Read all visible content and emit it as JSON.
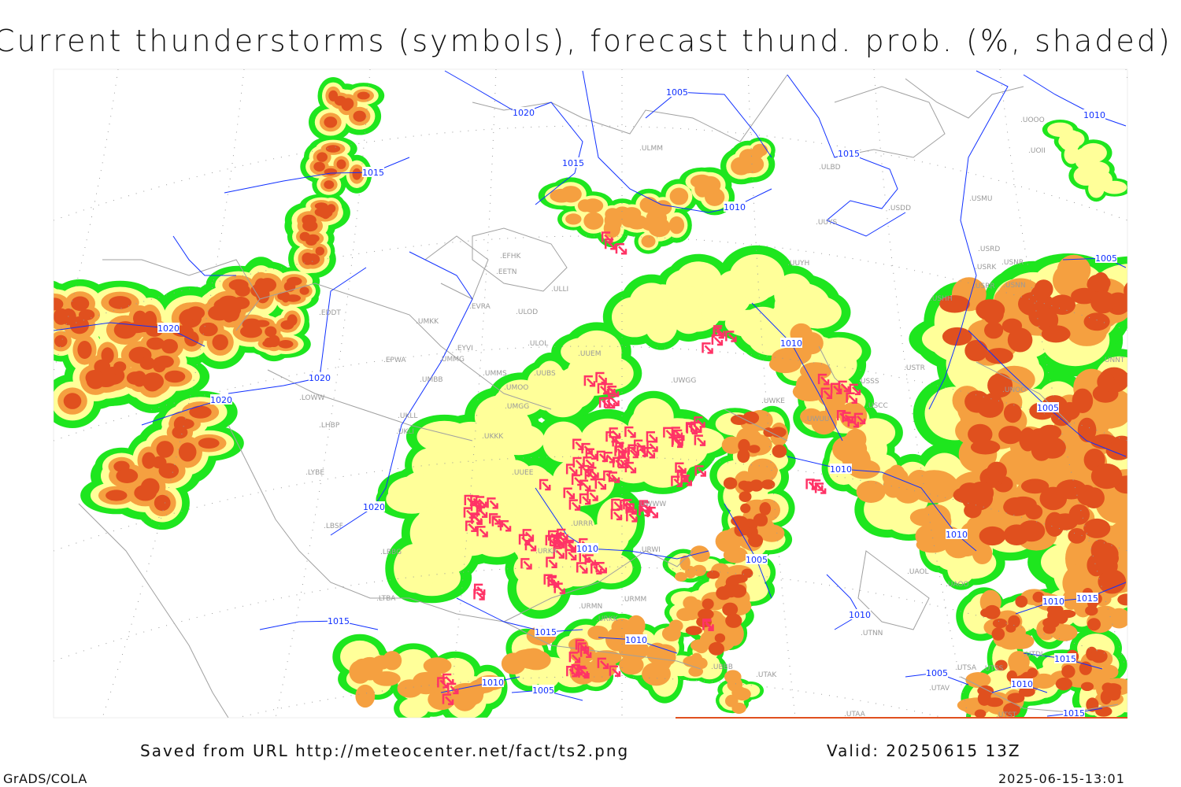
{
  "title": "Current thunderstorms (symbols), forecast thund. prob. (%, shaded)",
  "footer": {
    "saved": "Saved from URL http://meteocenter.net/fact/ts2.png",
    "valid": "Valid: 20250615 13Z",
    "software": "GrADS/COLA",
    "timestamp": "2025-06-15-13:01"
  },
  "colors": {
    "prob_low": "#1ee61e",
    "prob_mid": "#ffff99",
    "prob_high": "#f5a040",
    "prob_max": "#e0501e",
    "thunderstorm_symbol": "#ff3366",
    "isobar": "#1030ff",
    "coastline": "#a0a0a0"
  },
  "map": {
    "legend_symbol": "thunderstorm-symbol",
    "isobar_labels": [
      "1020",
      "1005",
      "1015",
      "1015",
      "1010",
      "1015",
      "1010",
      "1005",
      "1020",
      "1020",
      "1020",
      "1010",
      "1005",
      "1020",
      "1010",
      "1010",
      "1005",
      "1010",
      "1010",
      "1015",
      "1015",
      "1010",
      "1010",
      "1015",
      "1015",
      "1010",
      "1005",
      "1005",
      "1010",
      "1015"
    ],
    "stations": [
      "EFHK",
      "EETN",
      "ULLI",
      "EVRA",
      "ULOD",
      "UMKK",
      "EDDT",
      "EYVI",
      "EPWA",
      "UMMG",
      "ULOL",
      "UMMS",
      "UMOO",
      "UUBS",
      "UMBB",
      "LOWW",
      "UKLL",
      "LHBP",
      "UKLI",
      "UMGG",
      "UKKK",
      "LYBE",
      "LBSF",
      "LBBG",
      "LTBA",
      "UUEM",
      "UWGG",
      "UWKE",
      "UWUU",
      "UUYH",
      "UUYS",
      "ULBD",
      "USDD",
      "USMU",
      "USRD",
      "USRK",
      "USNR",
      "USRR",
      "USNN",
      "USHH",
      "USTR",
      "USSS",
      "USCC",
      "UOOO",
      "UOII",
      "UNOO",
      "UNNT",
      "UTAK",
      "UBBB",
      "UTSA",
      "UTSS",
      "UTAV",
      "UTAA",
      "UTST",
      "UTDL",
      "URWI",
      "URMM",
      "URKK",
      "UAOL",
      "UAOO",
      "UTNN",
      "ULMM",
      "UUEE",
      "URRR",
      "UWWW",
      "URKA",
      "URMN"
    ]
  }
}
